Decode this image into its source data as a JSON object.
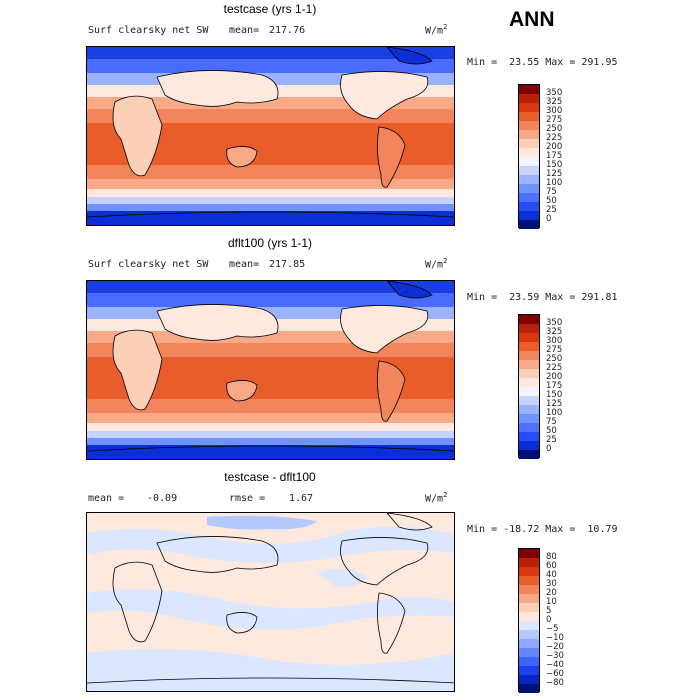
{
  "header": {
    "season": "ANN"
  },
  "units": "W/m",
  "units_exp": "2",
  "panels": [
    {
      "title": "testcase (yrs 1-1)",
      "field": "Surf clearsky net SW",
      "mean_label": "mean=",
      "mean_value": "217.76",
      "minmax": "Min =  23.55 Max = 291.95",
      "levels": [
        "350",
        "325",
        "300",
        "275",
        "250",
        "225",
        "200",
        "175",
        "150",
        "125",
        "100",
        "75",
        "50",
        "25",
        "0"
      ],
      "colors": [
        "#800000",
        "#b8200a",
        "#d9380f",
        "#e85d2a",
        "#f2855b",
        "#f7a988",
        "#fbcfb8",
        "#fde9dd",
        "#f2f4ff",
        "#c6d3ff",
        "#9bb3ff",
        "#7092ff",
        "#4d70ff",
        "#254df5",
        "#0b2fd4",
        "#00107a"
      ]
    },
    {
      "title": "dflt100 (yrs 1-1)",
      "field": "Surf clearsky net SW",
      "mean_label": "mean=",
      "mean_value": "217.85",
      "minmax": "Min =  23.59 Max = 291.81",
      "levels": [
        "350",
        "325",
        "300",
        "275",
        "250",
        "225",
        "200",
        "175",
        "150",
        "125",
        "100",
        "75",
        "50",
        "25",
        "0"
      ],
      "colors": [
        "#800000",
        "#b8200a",
        "#d9380f",
        "#e85d2a",
        "#f2855b",
        "#f7a988",
        "#fbcfb8",
        "#fde9dd",
        "#f2f4ff",
        "#c6d3ff",
        "#9bb3ff",
        "#7092ff",
        "#4d70ff",
        "#254df5",
        "#0b2fd4",
        "#00107a"
      ]
    },
    {
      "title": "testcase - dflt100",
      "mean_label": "mean =",
      "mean_value": "-0.09",
      "rmse_label": "rmse =",
      "rmse_value": "1.67",
      "minmax": "Min = -18.72 Max =  10.79",
      "levels": [
        "80",
        "60",
        "40",
        "30",
        "20",
        "10",
        "5",
        "0",
        "−5",
        "−10",
        "−20",
        "−30",
        "−40",
        "−60",
        "−80"
      ],
      "colors": [
        "#800000",
        "#b8200a",
        "#d9380f",
        "#e85d2a",
        "#f2855b",
        "#f7a988",
        "#fbcfb8",
        "#fde9dd",
        "#dbe6ff",
        "#b6c9ff",
        "#8ea9ff",
        "#6586ff",
        "#3d63ff",
        "#1a40ea",
        "#0925c4",
        "#00107a"
      ]
    }
  ]
}
